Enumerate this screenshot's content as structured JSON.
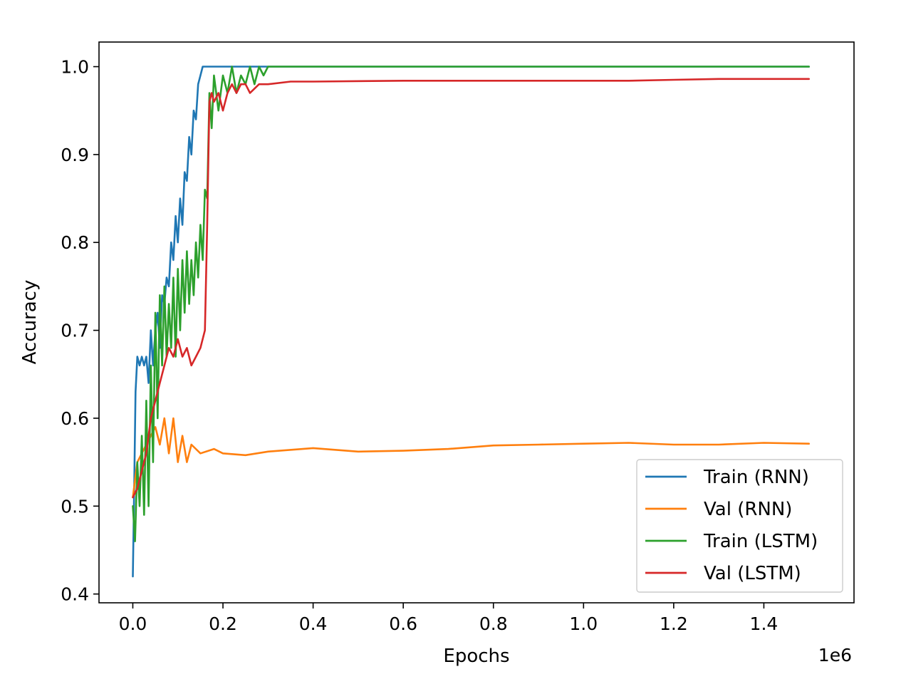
{
  "chart_data": {
    "type": "line",
    "title": "",
    "xlabel": "Epochs",
    "ylabel": "Accuracy",
    "x_offset_label": "1e6",
    "xlim": [
      -0.075,
      1.6
    ],
    "ylim": [
      0.39,
      1.028
    ],
    "x_ticks": [
      0.0,
      0.2,
      0.4,
      0.6,
      0.8,
      1.0,
      1.2,
      1.4
    ],
    "x_tick_labels": [
      "0.0",
      "0.2",
      "0.4",
      "0.6",
      "0.8",
      "1.0",
      "1.2",
      "1.4"
    ],
    "y_ticks": [
      0.4,
      0.5,
      0.6,
      0.7,
      0.8,
      0.9,
      1.0
    ],
    "y_tick_labels": [
      "0.4",
      "0.5",
      "0.6",
      "0.7",
      "0.8",
      "0.9",
      "1.0"
    ],
    "grid": false,
    "legend_position": "lower-right",
    "series": [
      {
        "name": "Train (RNN)",
        "color": "#1f77b4",
        "x": [
          0.0,
          0.003,
          0.006,
          0.01,
          0.015,
          0.02,
          0.025,
          0.03,
          0.035,
          0.04,
          0.045,
          0.05,
          0.055,
          0.06,
          0.065,
          0.07,
          0.075,
          0.08,
          0.085,
          0.09,
          0.095,
          0.1,
          0.105,
          0.11,
          0.115,
          0.12,
          0.125,
          0.13,
          0.135,
          0.14,
          0.145,
          0.15,
          0.155,
          0.16,
          0.18,
          0.2,
          0.3,
          0.5,
          1.0,
          1.5
        ],
        "y": [
          0.42,
          0.52,
          0.63,
          0.67,
          0.66,
          0.67,
          0.66,
          0.67,
          0.64,
          0.7,
          0.66,
          0.7,
          0.72,
          0.68,
          0.74,
          0.73,
          0.76,
          0.75,
          0.8,
          0.78,
          0.83,
          0.8,
          0.85,
          0.82,
          0.88,
          0.87,
          0.92,
          0.9,
          0.95,
          0.94,
          0.98,
          0.99,
          1.0,
          1.0,
          1.0,
          1.0,
          1.0,
          1.0,
          1.0,
          1.0
        ]
      },
      {
        "name": "Val (RNN)",
        "color": "#ff7f0e",
        "x": [
          0.0,
          0.005,
          0.01,
          0.02,
          0.03,
          0.04,
          0.05,
          0.06,
          0.07,
          0.08,
          0.09,
          0.1,
          0.11,
          0.12,
          0.13,
          0.15,
          0.18,
          0.2,
          0.25,
          0.3,
          0.4,
          0.5,
          0.6,
          0.7,
          0.8,
          0.9,
          1.0,
          1.1,
          1.2,
          1.3,
          1.4,
          1.5
        ],
        "y": [
          0.51,
          0.53,
          0.55,
          0.56,
          0.57,
          0.58,
          0.59,
          0.57,
          0.6,
          0.56,
          0.6,
          0.55,
          0.58,
          0.55,
          0.57,
          0.56,
          0.565,
          0.56,
          0.558,
          0.562,
          0.566,
          0.562,
          0.563,
          0.565,
          0.569,
          0.57,
          0.571,
          0.572,
          0.57,
          0.57,
          0.572,
          0.571
        ]
      },
      {
        "name": "Train (LSTM)",
        "color": "#2ca02c",
        "x": [
          0.0,
          0.005,
          0.01,
          0.015,
          0.02,
          0.025,
          0.03,
          0.035,
          0.04,
          0.045,
          0.05,
          0.055,
          0.06,
          0.065,
          0.07,
          0.075,
          0.08,
          0.085,
          0.09,
          0.095,
          0.1,
          0.105,
          0.11,
          0.115,
          0.12,
          0.125,
          0.13,
          0.135,
          0.14,
          0.145,
          0.15,
          0.155,
          0.16,
          0.165,
          0.17,
          0.175,
          0.18,
          0.19,
          0.2,
          0.21,
          0.22,
          0.23,
          0.24,
          0.25,
          0.26,
          0.27,
          0.28,
          0.29,
          0.3,
          0.32,
          0.4,
          0.6,
          0.8,
          1.0,
          1.2,
          1.5
        ],
        "y": [
          0.5,
          0.46,
          0.55,
          0.5,
          0.58,
          0.49,
          0.62,
          0.5,
          0.66,
          0.55,
          0.72,
          0.6,
          0.74,
          0.66,
          0.75,
          0.67,
          0.73,
          0.68,
          0.76,
          0.67,
          0.77,
          0.7,
          0.78,
          0.72,
          0.79,
          0.73,
          0.78,
          0.74,
          0.8,
          0.76,
          0.82,
          0.78,
          0.86,
          0.85,
          0.97,
          0.93,
          0.99,
          0.95,
          0.99,
          0.97,
          1.0,
          0.97,
          0.99,
          0.98,
          1.0,
          0.98,
          1.0,
          0.99,
          1.0,
          1.0,
          1.0,
          1.0,
          1.0,
          1.0,
          1.0,
          1.0
        ]
      },
      {
        "name": "Val (LSTM)",
        "color": "#d62728",
        "x": [
          0.0,
          0.01,
          0.02,
          0.03,
          0.04,
          0.05,
          0.06,
          0.07,
          0.08,
          0.09,
          0.1,
          0.11,
          0.12,
          0.13,
          0.14,
          0.15,
          0.16,
          0.165,
          0.17,
          0.175,
          0.18,
          0.19,
          0.2,
          0.21,
          0.22,
          0.23,
          0.24,
          0.25,
          0.26,
          0.28,
          0.3,
          0.35,
          0.4,
          0.6,
          0.8,
          1.0,
          1.1,
          1.2,
          1.3,
          1.4,
          1.5
        ],
        "y": [
          0.51,
          0.52,
          0.54,
          0.56,
          0.6,
          0.62,
          0.64,
          0.66,
          0.68,
          0.67,
          0.69,
          0.67,
          0.68,
          0.66,
          0.67,
          0.68,
          0.7,
          0.82,
          0.96,
          0.97,
          0.96,
          0.97,
          0.95,
          0.97,
          0.98,
          0.97,
          0.98,
          0.98,
          0.97,
          0.98,
          0.98,
          0.983,
          0.983,
          0.984,
          0.984,
          0.984,
          0.984,
          0.985,
          0.986,
          0.986,
          0.986
        ]
      }
    ]
  }
}
